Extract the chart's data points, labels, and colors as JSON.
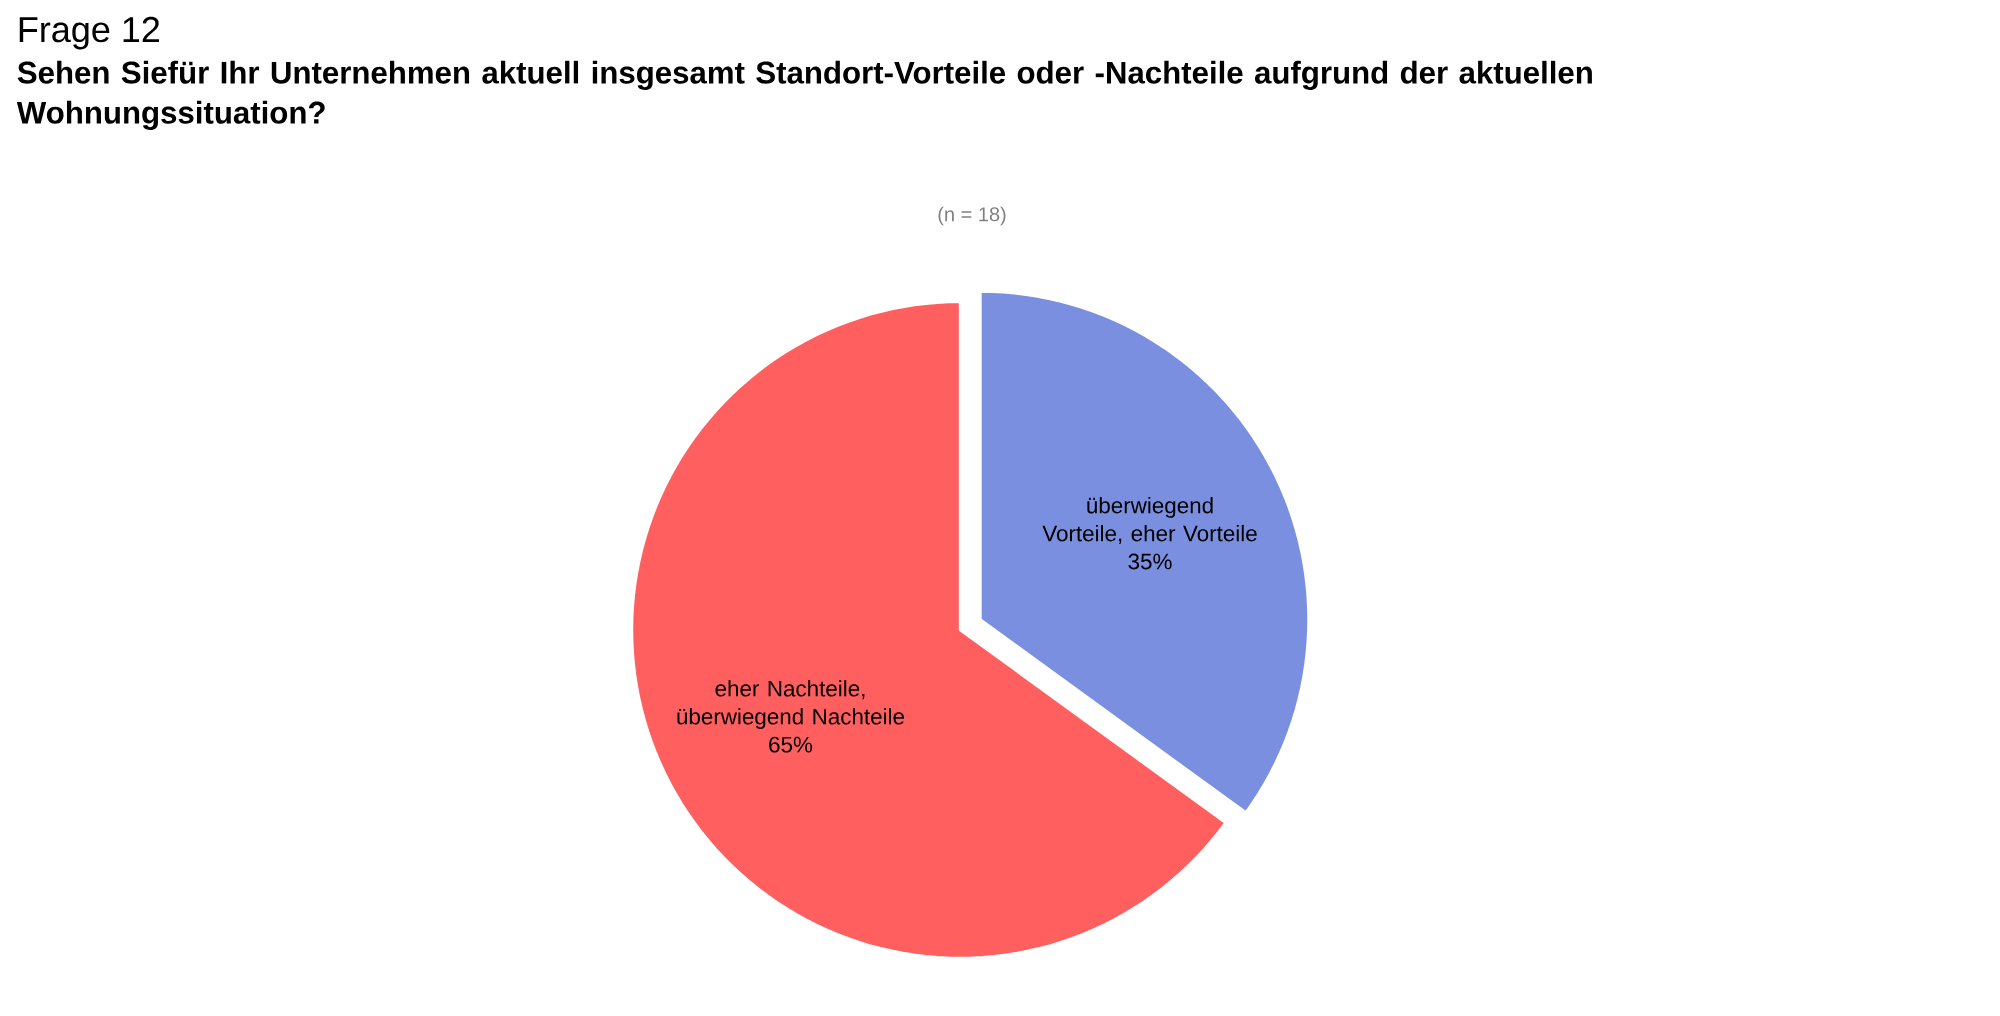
{
  "chart_data": {
    "type": "pie",
    "title": "Frage 12",
    "subtitle": "Sehen Siefür Ihr Unternehmen aktuell insgesamt Standort-Vorteile oder -Nachteile aufgrund der aktuellen Wohnungssituation?",
    "annotations": [
      "(n = 18)"
    ],
    "categories": [
      "überwiegend Vorteile, eher Vorteile",
      "eher Nachteile, überwiegend Nachteile"
    ],
    "values": [
      35,
      65
    ],
    "value_labels": [
      "35%",
      "65%"
    ],
    "colors": [
      "#7a8fdf",
      "#ff5f5f"
    ]
  }
}
